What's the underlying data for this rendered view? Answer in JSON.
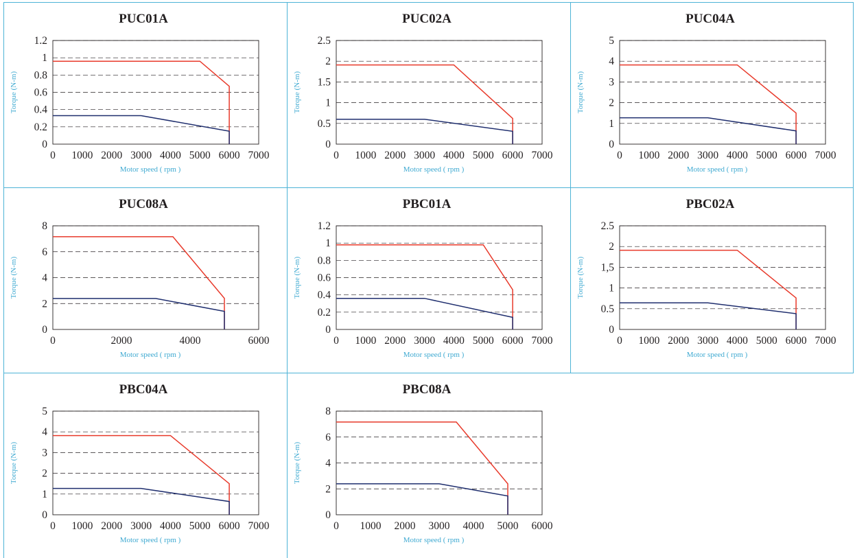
{
  "colors": {
    "peak": "#e8392a",
    "rated": "#1f2e6e",
    "border": "#4db3d6",
    "axis_label": "#3ea9d1"
  },
  "chart_data": [
    {
      "type": "line",
      "title": "PUC01A",
      "xlabel": "Motor speed ( rpm )",
      "ylabel": "Torque (N-m)",
      "xlim": [
        0,
        7000
      ],
      "ylim": [
        0,
        1.2
      ],
      "xticks": [
        "0",
        "1000",
        "2000",
        "3000",
        "4000",
        "5000",
        "6000",
        "7000"
      ],
      "yticks": [
        "0",
        "0.2",
        "0.4",
        "0.6",
        "0.8",
        "1",
        "1.2"
      ],
      "grid": "dashed horizontal",
      "series": [
        {
          "x": [
            0,
            5000,
            6000,
            6000
          ],
          "y": [
            0.96,
            0.96,
            0.67,
            0
          ],
          "color": "#e8392a"
        },
        {
          "x": [
            0,
            3000,
            6000,
            6000
          ],
          "y": [
            0.33,
            0.33,
            0.15,
            0
          ],
          "color": "#1f2e6e"
        }
      ]
    },
    {
      "type": "line",
      "title": "PUC02A",
      "xlabel": "Motor speed ( rpm )",
      "ylabel": "Torque (N-m)",
      "xlim": [
        0,
        7000
      ],
      "ylim": [
        0,
        2.5
      ],
      "xticks": [
        "0",
        "1000",
        "2000",
        "3000",
        "4000",
        "5000",
        "6000",
        "7000"
      ],
      "yticks": [
        "0",
        "0.5",
        "1",
        "1.5",
        "2",
        "2.5"
      ],
      "grid": "dashed horizontal",
      "series": [
        {
          "x": [
            0,
            4000,
            6000,
            6000
          ],
          "y": [
            1.91,
            1.91,
            0.62,
            0
          ],
          "color": "#e8392a"
        },
        {
          "x": [
            0,
            3000,
            6000,
            6000
          ],
          "y": [
            0.6,
            0.6,
            0.31,
            0
          ],
          "color": "#1f2e6e"
        }
      ]
    },
    {
      "type": "line",
      "title": "PUC04A",
      "xlabel": "Motor speed ( rpm )",
      "ylabel": "Torque (N-m)",
      "xlim": [
        0,
        7000
      ],
      "ylim": [
        0,
        5
      ],
      "xticks": [
        "0",
        "1000",
        "2000",
        "3000",
        "4000",
        "5000",
        "6000",
        "7000"
      ],
      "yticks": [
        "0",
        "1",
        "2",
        "3",
        "4",
        "5"
      ],
      "grid": "dashed horizontal",
      "series": [
        {
          "x": [
            0,
            4000,
            6000,
            6000
          ],
          "y": [
            3.82,
            3.82,
            1.5,
            0
          ],
          "color": "#e8392a"
        },
        {
          "x": [
            0,
            3000,
            6000,
            6000
          ],
          "y": [
            1.27,
            1.27,
            0.64,
            0
          ],
          "color": "#1f2e6e"
        }
      ]
    },
    {
      "type": "line",
      "title": "PUC08A",
      "xlabel": "Motor speed ( rpm )",
      "ylabel": "Torque (N-m)",
      "xlim": [
        0,
        6000
      ],
      "ylim": [
        0,
        8
      ],
      "xticks": [
        "0",
        "2000",
        "4000",
        "6000"
      ],
      "yticks": [
        "0",
        "2",
        "4",
        "6",
        "8"
      ],
      "grid": "dashed horizontal",
      "series": [
        {
          "x": [
            0,
            3500,
            5000,
            5000
          ],
          "y": [
            7.16,
            7.16,
            2.4,
            0
          ],
          "color": "#e8392a"
        },
        {
          "x": [
            0,
            3000,
            5000,
            5000
          ],
          "y": [
            2.39,
            2.39,
            1.4,
            0
          ],
          "color": "#1f2e6e"
        }
      ]
    },
    {
      "type": "line",
      "title": "PBC01A",
      "xlabel": "Motor speed ( rpm )",
      "ylabel": "Torque (N-m)",
      "xlim": [
        0,
        7000
      ],
      "ylim": [
        0,
        1.2
      ],
      "xticks": [
        "0",
        "1000",
        "2000",
        "3000",
        "4000",
        "5000",
        "6000",
        "7000"
      ],
      "yticks": [
        "0",
        "0.2",
        "0.4",
        "0.6",
        "0.8",
        "1",
        "1.2"
      ],
      "grid": "dashed horizontal",
      "series": [
        {
          "x": [
            0,
            5000,
            6000,
            6000
          ],
          "y": [
            0.98,
            0.98,
            0.46,
            0
          ],
          "color": "#e8392a"
        },
        {
          "x": [
            0,
            3000,
            6000,
            6000
          ],
          "y": [
            0.36,
            0.36,
            0.14,
            0
          ],
          "color": "#1f2e6e"
        }
      ]
    },
    {
      "type": "line",
      "title": "PBC02A",
      "xlabel": "Motor speed ( rpm )",
      "ylabel": "Torque (N-m)",
      "xlim": [
        0,
        7000
      ],
      "ylim": [
        0,
        2.5
      ],
      "xticks": [
        "0",
        "1000",
        "2000",
        "3000",
        "4000",
        "5000",
        "6000",
        "7000"
      ],
      "yticks": [
        "0",
        "0.5",
        "1",
        "1,5",
        "2",
        "2.5"
      ],
      "grid": "dashed horizontal",
      "series": [
        {
          "x": [
            0,
            4000,
            6000,
            6000
          ],
          "y": [
            1.91,
            1.91,
            0.76,
            0
          ],
          "color": "#e8392a"
        },
        {
          "x": [
            0,
            3000,
            6000,
            6000
          ],
          "y": [
            0.64,
            0.64,
            0.38,
            0
          ],
          "color": "#1f2e6e"
        }
      ]
    },
    {
      "type": "line",
      "title": "PBC04A",
      "xlabel": "Motor speed ( rpm )",
      "ylabel": "Torque (N-m)",
      "xlim": [
        0,
        7000
      ],
      "ylim": [
        0,
        5
      ],
      "xticks": [
        "0",
        "1000",
        "2000",
        "3000",
        "4000",
        "5000",
        "6000",
        "7000"
      ],
      "yticks": [
        "0",
        "1",
        "2",
        "3",
        "4",
        "5"
      ],
      "grid": "dashed horizontal",
      "series": [
        {
          "x": [
            0,
            4000,
            6000,
            6000
          ],
          "y": [
            3.82,
            3.82,
            1.5,
            0
          ],
          "color": "#e8392a"
        },
        {
          "x": [
            0,
            3000,
            6000,
            6000
          ],
          "y": [
            1.27,
            1.27,
            0.64,
            0
          ],
          "color": "#1f2e6e"
        }
      ]
    },
    {
      "type": "line",
      "title": "PBC08A",
      "xlabel": "Motor speed ( rpm )",
      "ylabel": "Torque (N-m)",
      "xlim": [
        0,
        6000
      ],
      "ylim": [
        0,
        8
      ],
      "xticks": [
        "0",
        "1000",
        "2000",
        "3000",
        "4000",
        "5000",
        "6000"
      ],
      "yticks": [
        "0",
        "2",
        "4",
        "6",
        "8"
      ],
      "grid": "dashed horizontal",
      "series": [
        {
          "x": [
            0,
            3500,
            5000,
            5000
          ],
          "y": [
            7.16,
            7.16,
            2.39,
            0
          ],
          "color": "#e8392a"
        },
        {
          "x": [
            0,
            3000,
            5000,
            5000
          ],
          "y": [
            2.39,
            2.39,
            1.45,
            0
          ],
          "color": "#1f2e6e"
        }
      ]
    }
  ]
}
